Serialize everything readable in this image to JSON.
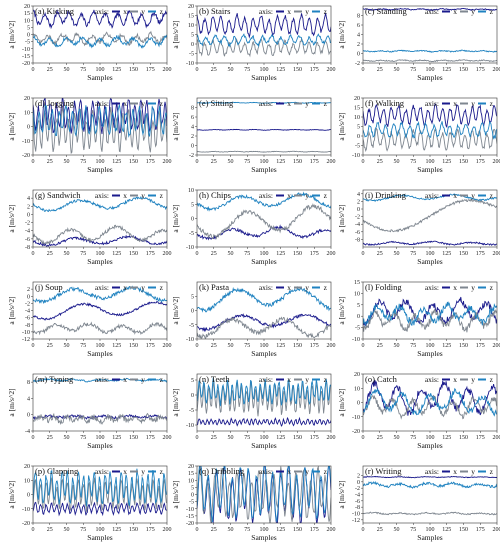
{
  "figure": {
    "x_label": "Samples",
    "y_label": "a [m/s^2]",
    "legend_prefix": "axis:",
    "legend_position": "top-right",
    "series_colors": {
      "x": "#1a1a8c",
      "y": "#7f8790",
      "z": "#1f82c0"
    }
  },
  "chart_data": [
    {
      "type": "line",
      "title": "(a) Kicking",
      "ylim": [
        -20,
        20
      ],
      "yticks": [
        -20,
        -15,
        -10,
        -5,
        0,
        5,
        10,
        15,
        20
      ],
      "xlim": [
        0,
        200
      ],
      "xticks": [
        0,
        25,
        50,
        75,
        100,
        125,
        150,
        175,
        200
      ],
      "series": [
        {
          "name": "x",
          "mean": 11,
          "amp": 4,
          "period": 18,
          "noise": 1.5
        },
        {
          "name": "y",
          "mean": -3,
          "amp": 2.5,
          "period": 22,
          "noise": 1.5
        },
        {
          "name": "z",
          "mean": -5,
          "amp": 2.5,
          "period": 25,
          "noise": 1.2
        }
      ]
    },
    {
      "type": "line",
      "title": "(b) Stairs",
      "ylim": [
        -10,
        20
      ],
      "yticks": [
        -10,
        -5,
        0,
        5,
        10,
        15,
        20
      ],
      "xlim": [
        0,
        200
      ],
      "xticks": [
        0,
        25,
        50,
        75,
        100,
        125,
        150,
        175,
        200
      ],
      "series": [
        {
          "name": "x",
          "mean": 10,
          "amp": 4,
          "period": 12,
          "noise": 1
        },
        {
          "name": "y",
          "mean": -2,
          "amp": 3,
          "period": 12,
          "noise": 1
        },
        {
          "name": "z",
          "mean": 2,
          "amp": 2,
          "period": 14,
          "noise": 0.8
        }
      ]
    },
    {
      "type": "line",
      "title": "(c) Standing",
      "ylim": [
        -2,
        10
      ],
      "yticks": [
        -2,
        0,
        2,
        4,
        6,
        8
      ],
      "xlim": [
        0,
        200
      ],
      "xticks": [
        0,
        25,
        50,
        75,
        100,
        125,
        150,
        175,
        200
      ],
      "series": [
        {
          "name": "x",
          "mean": 9.3,
          "amp": 0.1,
          "period": 30,
          "noise": 0.1
        },
        {
          "name": "y",
          "mean": -1.5,
          "amp": 0.1,
          "period": 30,
          "noise": 0.1
        },
        {
          "name": "z",
          "mean": 0.5,
          "amp": 0.1,
          "period": 30,
          "noise": 0.1
        }
      ]
    },
    {
      "type": "line",
      "title": "(d) Jogging",
      "ylim": [
        -20,
        20
      ],
      "yticks": [
        -20,
        -10,
        0,
        10,
        20
      ],
      "xlim": [
        0,
        200
      ],
      "xticks": [
        0,
        25,
        50,
        75,
        100,
        125,
        150,
        175,
        200
      ],
      "series": [
        {
          "name": "x",
          "mean": 8,
          "amp": 9,
          "period": 9,
          "noise": 2
        },
        {
          "name": "y",
          "mean": -3,
          "amp": 11,
          "period": 9,
          "noise": 2
        },
        {
          "name": "z",
          "mean": 4,
          "amp": 8,
          "period": 10,
          "noise": 2
        }
      ]
    },
    {
      "type": "line",
      "title": "(e) Sitting",
      "ylim": [
        -2,
        10
      ],
      "yticks": [
        -2,
        0,
        2,
        4,
        6,
        8
      ],
      "xlim": [
        0,
        200
      ],
      "xticks": [
        0,
        25,
        50,
        75,
        100,
        125,
        150,
        175,
        200
      ],
      "series": [
        {
          "name": "x",
          "mean": 3.3,
          "amp": 0.05,
          "period": 30,
          "noise": 0.05
        },
        {
          "name": "y",
          "mean": -1.3,
          "amp": 0.05,
          "period": 30,
          "noise": 0.05
        },
        {
          "name": "z",
          "mean": 9,
          "amp": 0.05,
          "period": 30,
          "noise": 0.05
        }
      ]
    },
    {
      "type": "line",
      "title": "(f) Walking",
      "ylim": [
        -10,
        20
      ],
      "yticks": [
        -10,
        -5,
        0,
        5,
        10,
        15,
        20
      ],
      "xlim": [
        0,
        200
      ],
      "xticks": [
        0,
        25,
        50,
        75,
        100,
        125,
        150,
        175,
        200
      ],
      "series": [
        {
          "name": "x",
          "mean": 11,
          "amp": 4,
          "period": 11,
          "noise": 1
        },
        {
          "name": "y",
          "mean": -2,
          "amp": 4,
          "period": 11,
          "noise": 1
        },
        {
          "name": "z",
          "mean": 3,
          "amp": 3,
          "period": 12,
          "noise": 1
        }
      ]
    },
    {
      "type": "line",
      "title": "(g) Sandwich",
      "ylim": [
        -8,
        6
      ],
      "yticks": [
        -8,
        -6,
        -4,
        -2,
        0,
        2,
        4
      ],
      "xlim": [
        0,
        200
      ],
      "xticks": [
        0,
        25,
        50,
        75,
        100,
        125,
        150,
        175,
        200
      ],
      "series": [
        {
          "name": "x",
          "mean": -6.5,
          "amp": 0.8,
          "period": 80,
          "noise": 0.3
        },
        {
          "name": "y",
          "mean": -5,
          "amp": 1.5,
          "period": 70,
          "noise": 0.4
        },
        {
          "name": "z",
          "mean": 2.5,
          "amp": 1.2,
          "period": 90,
          "noise": 0.3
        }
      ]
    },
    {
      "type": "line",
      "title": "(h) Chips",
      "ylim": [
        -10,
        10
      ],
      "yticks": [
        -10,
        -5,
        0,
        5,
        10
      ],
      "xlim": [
        0,
        200
      ],
      "xticks": [
        0,
        25,
        50,
        75,
        100,
        125,
        150,
        175,
        200
      ],
      "series": [
        {
          "name": "x",
          "mean": -5,
          "amp": 1.5,
          "period": 70,
          "noise": 0.5
        },
        {
          "name": "y",
          "mean": -1,
          "amp": 4,
          "period": 100,
          "noise": 0.8
        },
        {
          "name": "z",
          "mean": 6,
          "amp": 2,
          "period": 90,
          "noise": 0.5
        }
      ]
    },
    {
      "type": "line",
      "title": "(i) Drinking",
      "ylim": [
        -10,
        5
      ],
      "yticks": [
        -8,
        -6,
        -4,
        -2,
        0,
        2,
        4
      ],
      "xlim": [
        0,
        200
      ],
      "xticks": [
        0,
        25,
        50,
        75,
        100,
        125,
        150,
        175,
        200
      ],
      "series": [
        {
          "name": "x",
          "mean": -9,
          "amp": 0.3,
          "period": 60,
          "noise": 0.2
        },
        {
          "name": "y",
          "mean": -1,
          "amp": 3.5,
          "period": 220,
          "noise": 0.3
        },
        {
          "name": "z",
          "mean": 3,
          "amp": 0.6,
          "period": 80,
          "noise": 0.2
        }
      ]
    },
    {
      "type": "line",
      "title": "(j) Soup",
      "ylim": [
        -12,
        4
      ],
      "yticks": [
        -12,
        -10,
        -8,
        -6,
        -4,
        -2,
        0,
        2
      ],
      "xlim": [
        0,
        200
      ],
      "xticks": [
        0,
        25,
        50,
        75,
        100,
        125,
        150,
        175,
        200
      ],
      "series": [
        {
          "name": "x",
          "mean": -4,
          "amp": 1.8,
          "period": 110,
          "noise": 0.3
        },
        {
          "name": "y",
          "mean": -9,
          "amp": 1,
          "period": 50,
          "noise": 0.5
        },
        {
          "name": "z",
          "mean": 0.5,
          "amp": 1.5,
          "period": 90,
          "noise": 0.5
        }
      ]
    },
    {
      "type": "line",
      "title": "(k) Pasta",
      "ylim": [
        -10,
        10
      ],
      "yticks": [
        -10,
        -5,
        0,
        5
      ],
      "xlim": [
        0,
        200
      ],
      "xticks": [
        0,
        25,
        50,
        75,
        100,
        125,
        150,
        175,
        200
      ],
      "series": [
        {
          "name": "x",
          "mean": -4,
          "amp": 2,
          "period": 100,
          "noise": 0.5
        },
        {
          "name": "y",
          "mean": -6,
          "amp": 2.5,
          "period": 80,
          "noise": 0.8
        },
        {
          "name": "z",
          "mean": 4,
          "amp": 3,
          "period": 95,
          "noise": 0.7
        }
      ]
    },
    {
      "type": "line",
      "title": "(l) Folding",
      "ylim": [
        -10,
        15
      ],
      "yticks": [
        -10,
        -5,
        0,
        5,
        10,
        15
      ],
      "xlim": [
        0,
        200
      ],
      "xticks": [
        0,
        25,
        50,
        75,
        100,
        125,
        150,
        175,
        200
      ],
      "series": [
        {
          "name": "x",
          "mean": 2,
          "amp": 4,
          "period": 40,
          "noise": 1.5
        },
        {
          "name": "y",
          "mean": -2,
          "amp": 3,
          "period": 30,
          "noise": 1.5
        },
        {
          "name": "z",
          "mean": 1,
          "amp": 3,
          "period": 35,
          "noise": 1.5
        }
      ]
    },
    {
      "type": "line",
      "title": "(m) Typing",
      "ylim": [
        -4,
        10
      ],
      "yticks": [
        -4,
        0,
        4,
        8
      ],
      "xlim": [
        0,
        200
      ],
      "xticks": [
        0,
        25,
        50,
        75,
        100,
        125,
        150,
        175,
        200
      ],
      "series": [
        {
          "name": "x",
          "mean": -0.5,
          "amp": 0.2,
          "period": 40,
          "noise": 0.3
        },
        {
          "name": "y",
          "mean": -1,
          "amp": 0.5,
          "period": 20,
          "noise": 0.7
        },
        {
          "name": "z",
          "mean": 8.5,
          "amp": 0.2,
          "period": 40,
          "noise": 0.2
        }
      ]
    },
    {
      "type": "line",
      "title": "(n) Teeth",
      "ylim": [
        -12,
        7
      ],
      "yticks": [
        -10,
        -5,
        0,
        5
      ],
      "xlim": [
        0,
        200
      ],
      "xticks": [
        0,
        25,
        50,
        75,
        100,
        125,
        150,
        175,
        200
      ],
      "series": [
        {
          "name": "x",
          "mean": -9,
          "amp": 0.8,
          "period": 6,
          "noise": 0.3
        },
        {
          "name": "y",
          "mean": -1,
          "amp": 4,
          "period": 7,
          "noise": 0.8
        },
        {
          "name": "z",
          "mean": 1,
          "amp": 3,
          "period": 7,
          "noise": 0.8
        }
      ]
    },
    {
      "type": "line",
      "title": "(o) Catch",
      "ylim": [
        -20,
        20
      ],
      "yticks": [
        -20,
        -10,
        0,
        10,
        20
      ],
      "xlim": [
        0,
        200
      ],
      "xticks": [
        0,
        25,
        50,
        75,
        100,
        125,
        150,
        175,
        200
      ],
      "series": [
        {
          "name": "x",
          "mean": 3,
          "amp": 8,
          "period": 35,
          "noise": 2.5
        },
        {
          "name": "y",
          "mean": -3,
          "amp": 5,
          "period": 30,
          "noise": 2
        },
        {
          "name": "z",
          "mean": 0,
          "amp": 6,
          "period": 40,
          "noise": 2
        }
      ]
    },
    {
      "type": "line",
      "title": "(p) Clapping",
      "ylim": [
        -20,
        20
      ],
      "yticks": [
        -20,
        -10,
        0,
        10,
        20
      ],
      "xlim": [
        0,
        200
      ],
      "xticks": [
        0,
        25,
        50,
        75,
        100,
        125,
        150,
        175,
        200
      ],
      "series": [
        {
          "name": "x",
          "mean": -10,
          "amp": 3,
          "period": 8,
          "noise": 1
        },
        {
          "name": "y",
          "mean": 0,
          "amp": 8,
          "period": 8,
          "noise": 2
        },
        {
          "name": "z",
          "mean": 5,
          "amp": 9,
          "period": 8,
          "noise": 2
        }
      ]
    },
    {
      "type": "line",
      "title": "(q) Dribbling",
      "ylim": [
        -20,
        20
      ],
      "yticks": [
        -20,
        -15,
        -10,
        -5,
        0,
        5,
        10,
        15,
        20
      ],
      "xlim": [
        0,
        200
      ],
      "xticks": [
        0,
        25,
        50,
        75,
        100,
        125,
        150,
        175,
        200
      ],
      "series": [
        {
          "name": "x",
          "mean": 0,
          "amp": 16,
          "period": 12,
          "noise": 2
        },
        {
          "name": "y",
          "mean": 0,
          "amp": 14,
          "period": 11,
          "noise": 2
        },
        {
          "name": "z",
          "mean": 2,
          "amp": 15,
          "period": 12,
          "noise": 2
        }
      ]
    },
    {
      "type": "line",
      "title": "(r) Writing",
      "ylim": [
        -13,
        5
      ],
      "yticks": [
        -12,
        -10,
        -8,
        -6,
        -4,
        -2,
        0,
        2
      ],
      "xlim": [
        0,
        200
      ],
      "xticks": [
        0,
        25,
        50,
        75,
        100,
        125,
        150,
        175,
        200
      ],
      "series": [
        {
          "name": "x",
          "mean": 1.5,
          "amp": 0.1,
          "period": 40,
          "noise": 0.1
        },
        {
          "name": "y",
          "mean": -10,
          "amp": 0.2,
          "period": 40,
          "noise": 0.2
        },
        {
          "name": "z",
          "mean": -1,
          "amp": 0.5,
          "period": 40,
          "noise": 0.4
        }
      ]
    }
  ]
}
